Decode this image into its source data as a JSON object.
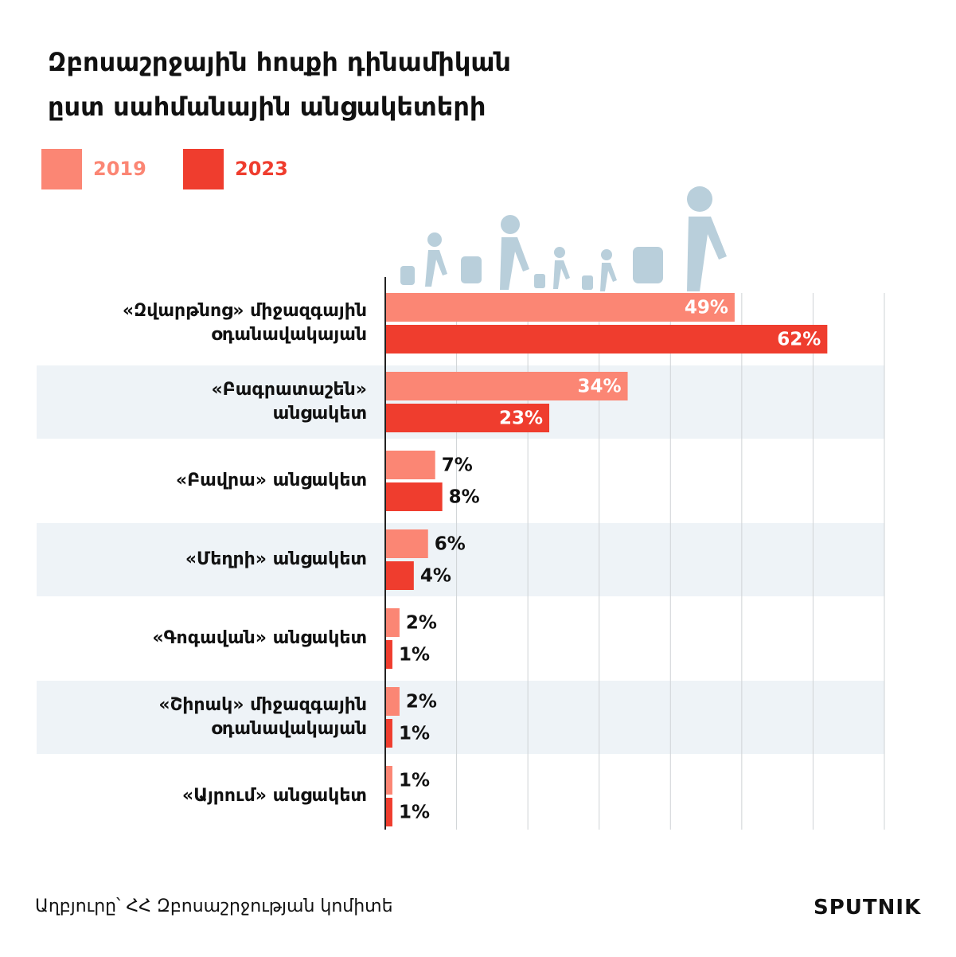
{
  "chart_data": {
    "type": "bar",
    "orientation": "horizontal",
    "title": "Զբոսաշրջային հոսքի դինամիկան\nըստ սահմանային անցակետերի",
    "categories": [
      "«Զվարթնոց» միջազգային\nօդանավակայան",
      "«Բագրատաշեն»\nանցակետ",
      "«Բավրա» անցակետ",
      "«Մեղրի» անցակետ",
      "«Գոգավան» անցակետ",
      "«Շիրակ» միջազգային\nօդանավակայան",
      "«Այրում» անցակետ"
    ],
    "series": [
      {
        "name": "2019",
        "color": "#fb8674",
        "values": [
          49,
          34,
          7,
          6,
          2,
          2,
          1
        ],
        "value_labels": [
          "49%",
          "34%",
          "7%",
          "6%",
          "2%",
          "2%",
          "1%"
        ]
      },
      {
        "name": "2023",
        "color": "#ef3d2e",
        "values": [
          62,
          23,
          8,
          4,
          1,
          1,
          1
        ],
        "value_labels": [
          "62%",
          "23%",
          "8%",
          "4%",
          "1%",
          "1%",
          "1%"
        ]
      }
    ],
    "xlim": [
      0,
      70
    ],
    "xticks": [
      0,
      10,
      20,
      30,
      40,
      50,
      60,
      70
    ],
    "grid": true,
    "source": "Աղբյուրը՝ ՀՀ Զբոսաշրջության կոմիտե",
    "logo": "SPUTNIK"
  }
}
